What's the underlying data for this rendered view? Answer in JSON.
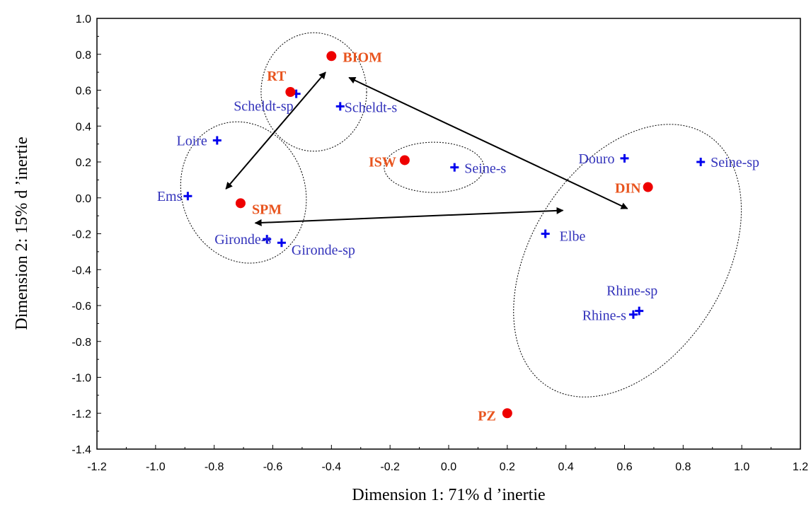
{
  "chart_data": {
    "type": "scatter",
    "title": "",
    "xlabel": "Dimension 1: 71% d ’inertie",
    "ylabel": "Dimension 2: 15% d ’inertie",
    "xlim": [
      -1.2,
      1.2
    ],
    "ylim": [
      -1.4,
      1.0
    ],
    "xticks": [
      "-1.2",
      "-1.0",
      "-0.8",
      "-0.6",
      "-0.4",
      "-0.2",
      "0.0",
      "0.2",
      "0.4",
      "0.6",
      "0.8",
      "1.0",
      "1.2"
    ],
    "yticks": [
      "1.0",
      "0.8",
      "0.6",
      "0.4",
      "0.2",
      "0.0",
      "-0.2",
      "-0.4",
      "-0.6",
      "-0.8",
      "-1.0",
      "-1.2",
      "-1.4"
    ],
    "grid": false,
    "series": [
      {
        "marker": "cross",
        "color": "#0000ee",
        "label_color": "#3333bb",
        "points": [
          {
            "label": "Scheldt-sp",
            "x": -0.52,
            "y": 0.58
          },
          {
            "label": "Scheldt-s",
            "x": -0.37,
            "y": 0.51
          },
          {
            "label": "Loire",
            "x": -0.79,
            "y": 0.32
          },
          {
            "label": "Ems",
            "x": -0.89,
            "y": 0.01
          },
          {
            "label": "Gironde-s",
            "x": -0.62,
            "y": -0.23
          },
          {
            "label": "Gironde-sp",
            "x": -0.57,
            "y": -0.25
          },
          {
            "label": "Seine-s",
            "x": 0.02,
            "y": 0.17
          },
          {
            "label": "Douro",
            "x": 0.6,
            "y": 0.22
          },
          {
            "label": "Seine-sp",
            "x": 0.86,
            "y": 0.2
          },
          {
            "label": "Elbe",
            "x": 0.33,
            "y": -0.2
          },
          {
            "label": "Rhine-sp",
            "x": 0.65,
            "y": -0.63
          },
          {
            "label": "Rhine-s",
            "x": 0.63,
            "y": -0.65
          }
        ]
      },
      {
        "marker": "circle",
        "color": "#ee0000",
        "label_color": "#e8541e",
        "points": [
          {
            "label": "BIOM",
            "x": -0.4,
            "y": 0.79
          },
          {
            "label": "RT",
            "x": -0.54,
            "y": 0.59
          },
          {
            "label": "ISW",
            "x": -0.15,
            "y": 0.21
          },
          {
            "label": "SPM",
            "x": -0.71,
            "y": -0.03
          },
          {
            "label": "DIN",
            "x": 0.68,
            "y": 0.06
          },
          {
            "label": "PZ",
            "x": 0.2,
            "y": -1.2
          }
        ]
      }
    ],
    "annotations": {
      "ellipses": [
        {
          "cx": -0.46,
          "cy": 0.59,
          "rx": 0.18,
          "ry": 0.33
        },
        {
          "cx": -0.7,
          "cy": 0.03,
          "rx": 0.21,
          "ry": 0.4,
          "rotate": -20
        },
        {
          "cx": -0.05,
          "cy": 0.17,
          "rx": 0.17,
          "ry": 0.14
        },
        {
          "cx": 0.61,
          "cy": -0.35,
          "rx": 0.33,
          "ry": 0.83,
          "rotate": 32
        }
      ],
      "double_arrows": [
        {
          "x1": -0.42,
          "y1": 0.7,
          "x2": -0.76,
          "y2": 0.05
        },
        {
          "x1": -0.34,
          "y1": 0.67,
          "x2": 0.61,
          "y2": -0.06
        },
        {
          "x1": -0.66,
          "y1": -0.14,
          "x2": 0.39,
          "y2": -0.07
        }
      ]
    }
  }
}
